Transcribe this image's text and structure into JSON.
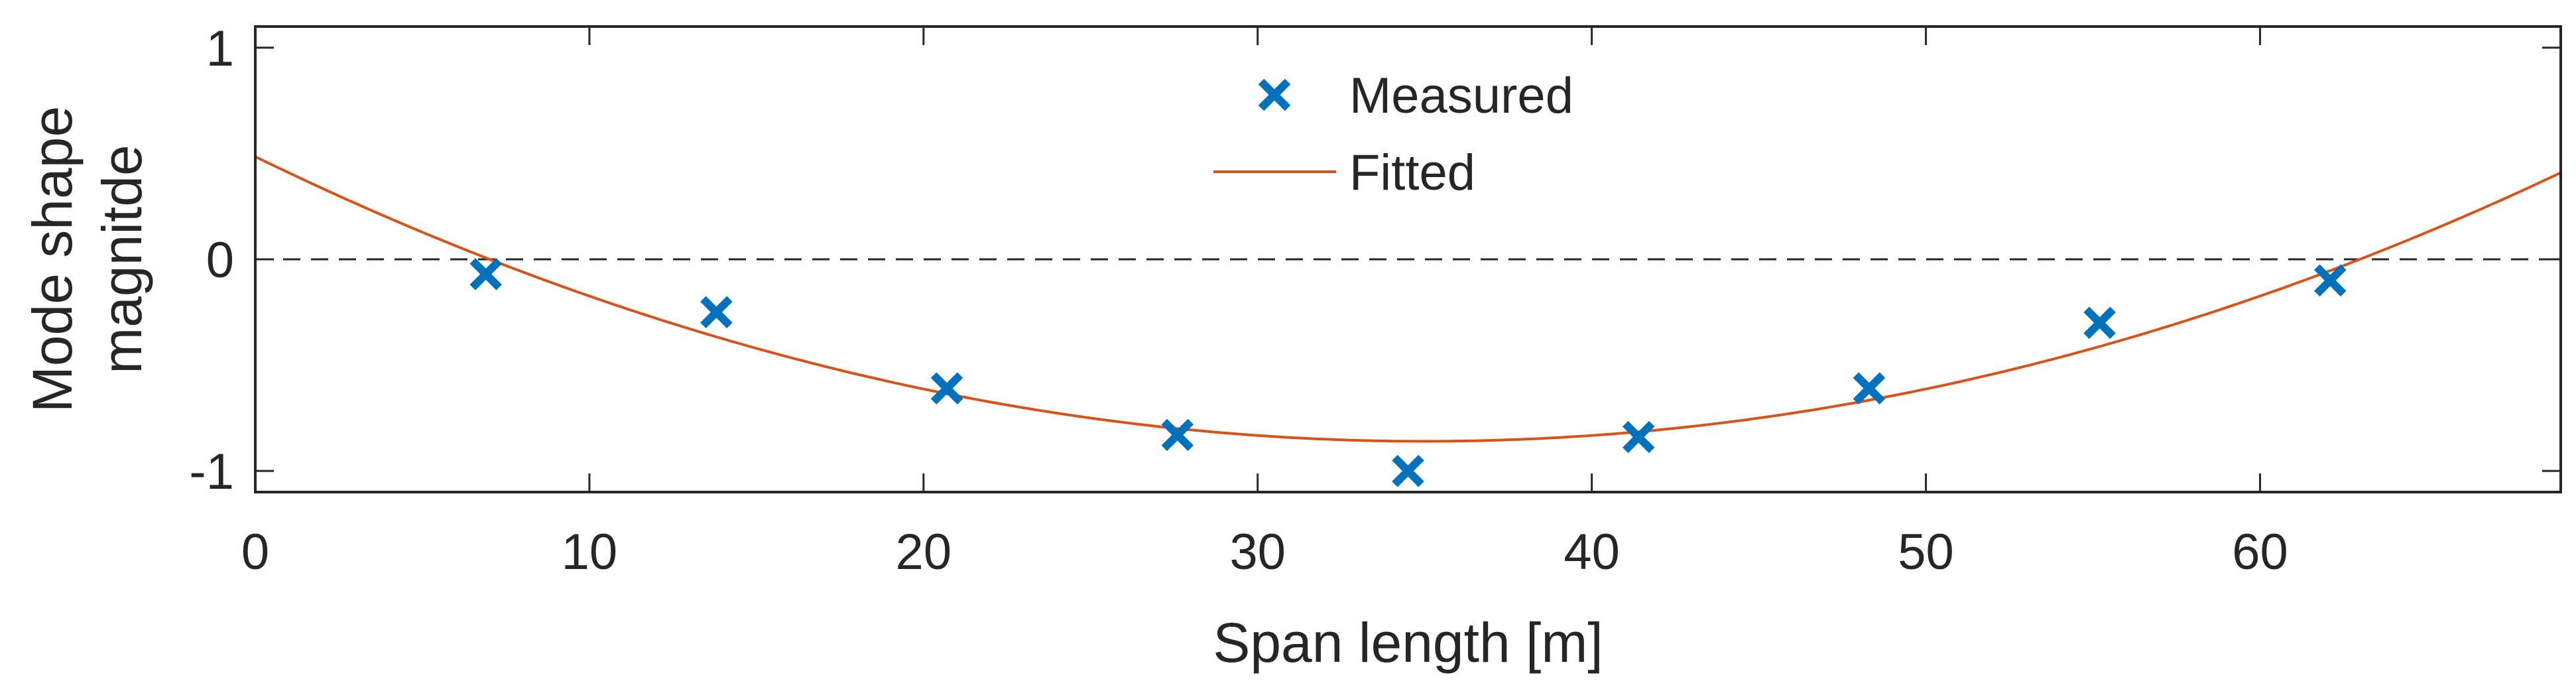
{
  "chart_data": {
    "type": "line",
    "title": "",
    "xlabel": "Span length [m]",
    "ylabel_lines": [
      "Mode shape",
      "magnitde"
    ],
    "xlim": [
      0,
      69
    ],
    "ylim": [
      -1.1,
      1.1
    ],
    "xticks": [
      0,
      10,
      20,
      30,
      40,
      50,
      60
    ],
    "yticks": [
      -1,
      0,
      1
    ],
    "xtick_labels": [
      "0",
      "10",
      "20",
      "30",
      "40",
      "50",
      "60"
    ],
    "ytick_labels": [
      "-1",
      "0",
      "1"
    ],
    "zero_line": {
      "y": 0,
      "style": "dashed"
    },
    "legend_position": "top-center",
    "series": [
      {
        "name": "Measured",
        "kind": "scatter",
        "marker": "x",
        "color": "#0072BD",
        "x": [
          6.9,
          13.8,
          20.7,
          27.6,
          34.5,
          41.4,
          48.3,
          55.2,
          62.1
        ],
        "y": [
          -0.07,
          -0.25,
          -0.61,
          -0.83,
          -1.0,
          -0.84,
          -0.61,
          -0.3,
          -0.1
        ]
      },
      {
        "name": "Fitted",
        "kind": "line",
        "color": "#D95319",
        "curve": "quadratic",
        "vertex": [
          35.0,
          -0.86
        ],
        "x": [
          0,
          5,
          7.2,
          10,
          15,
          20,
          25,
          30,
          35,
          40,
          45,
          50,
          55,
          60,
          62.2,
          65,
          69
        ],
        "y": [
          0.485,
          0.164,
          0.034,
          -0.118,
          -0.353,
          -0.541,
          -0.682,
          -0.776,
          -0.86,
          -0.832,
          -0.73,
          -0.589,
          -0.4,
          -0.16,
          -0.015,
          0.2,
          0.44
        ]
      }
    ]
  },
  "colors": {
    "axis": "#262626",
    "background": "#ffffff",
    "zero_line": "#262626"
  }
}
